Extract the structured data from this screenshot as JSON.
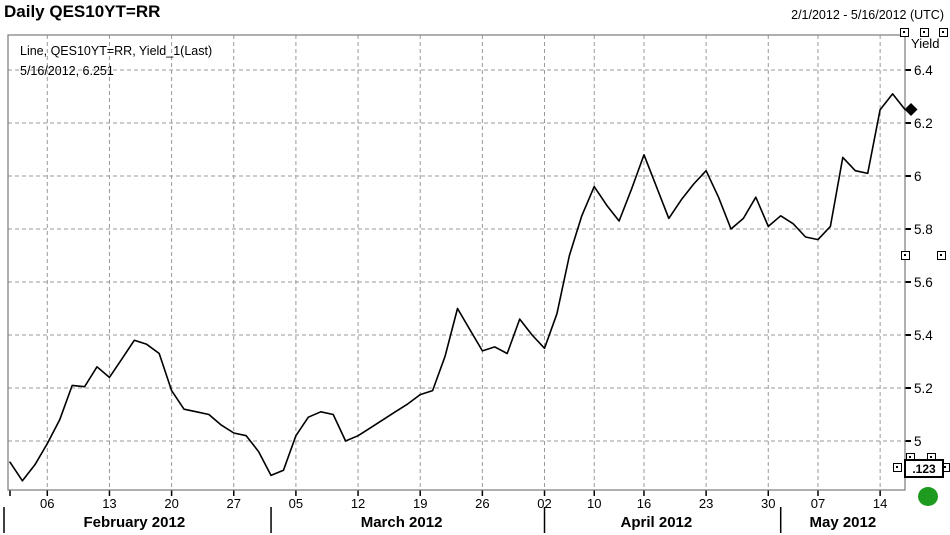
{
  "header": {
    "title": "Daily QES10YT=RR",
    "date_range": "2/1/2012 - 5/16/2012 (UTC)"
  },
  "legend": {
    "series": "Line, QES10YT=RR, Yield_1(Last)",
    "last_point": "5/16/2012, 6.251"
  },
  "y_axis": {
    "title": "Yield",
    "tick_labels": [
      "6.4",
      "6.2",
      "6",
      "5.8",
      "5.6",
      "5.4",
      "5.2",
      "5"
    ],
    "tick_values": [
      6.4,
      6.2,
      6.0,
      5.8,
      5.6,
      5.4,
      5.2,
      5.0
    ]
  },
  "toolbar": {
    "decimal_button": ".123"
  },
  "colors": {
    "line": "#000000",
    "grid": "#999999",
    "frame": "#7a7a7a",
    "axis_tick": "#000000",
    "status_dot": "#1e9b1e",
    "marker": "#000000"
  },
  "icons": [
    "selection-handle-icon",
    "last-price-diamond-icon",
    "status-dot-icon"
  ],
  "chart_data": {
    "type": "line",
    "title": "Daily QES10YT=RR",
    "ylabel": "Yield",
    "ylim": [
      4.81,
      6.53
    ],
    "grid": "dashed",
    "legend_position": "top-left-inside",
    "last_date": "5/16/2012",
    "last_value": 6.251,
    "dates": [
      "Feb 01",
      "Feb 02",
      "Feb 03",
      "Feb 06",
      "Feb 07",
      "Feb 08",
      "Feb 09",
      "Feb 10",
      "Feb 13",
      "Feb 14",
      "Feb 15",
      "Feb 16",
      "Feb 17",
      "Feb 20",
      "Feb 21",
      "Feb 22",
      "Feb 23",
      "Feb 24",
      "Feb 27",
      "Feb 28",
      "Feb 29",
      "Mar 01",
      "Mar 02",
      "Mar 05",
      "Mar 06",
      "Mar 07",
      "Mar 08",
      "Mar 09",
      "Mar 12",
      "Mar 13",
      "Mar 14",
      "Mar 15",
      "Mar 16",
      "Mar 19",
      "Mar 20",
      "Mar 21",
      "Mar 22",
      "Mar 23",
      "Mar 26",
      "Mar 27",
      "Mar 28",
      "Mar 29",
      "Mar 30",
      "Apr 02",
      "Apr 03",
      "Apr 04",
      "Apr 09",
      "Apr 10",
      "Apr 11",
      "Apr 12",
      "Apr 13",
      "Apr 16",
      "Apr 17",
      "Apr 18",
      "Apr 19",
      "Apr 20",
      "Apr 23",
      "Apr 24",
      "Apr 25",
      "Apr 26",
      "Apr 27",
      "Apr 30",
      "May 02",
      "May 03",
      "May 04",
      "May 07",
      "May 08",
      "May 09",
      "May 10",
      "May 11",
      "May 14",
      "May 15",
      "May 16"
    ],
    "values": [
      4.92,
      4.85,
      4.91,
      4.99,
      5.08,
      5.21,
      5.205,
      5.28,
      5.24,
      5.31,
      5.38,
      5.365,
      5.33,
      5.19,
      5.12,
      5.11,
      5.1,
      5.06,
      5.03,
      5.02,
      4.96,
      4.87,
      4.89,
      5.02,
      5.09,
      5.11,
      5.1,
      5.0,
      5.02,
      5.05,
      5.08,
      5.11,
      5.14,
      5.175,
      5.19,
      5.32,
      5.5,
      5.42,
      5.34,
      5.355,
      5.33,
      5.46,
      5.4,
      5.35,
      5.48,
      5.7,
      5.85,
      5.96,
      5.89,
      5.83,
      5.95,
      6.08,
      5.96,
      5.84,
      5.91,
      5.97,
      6.02,
      5.92,
      5.8,
      5.84,
      5.92,
      5.81,
      5.85,
      5.82,
      5.77,
      5.76,
      5.81,
      6.07,
      6.02,
      6.01,
      6.25,
      6.31,
      6.251
    ],
    "x_ticks": [
      {
        "index": 3,
        "label": "06"
      },
      {
        "index": 8,
        "label": "13"
      },
      {
        "index": 13,
        "label": "20"
      },
      {
        "index": 18,
        "label": "27"
      },
      {
        "index": 23,
        "label": "05"
      },
      {
        "index": 28,
        "label": "12"
      },
      {
        "index": 33,
        "label": "19"
      },
      {
        "index": 38,
        "label": "26"
      },
      {
        "index": 43,
        "label": "02"
      },
      {
        "index": 47,
        "label": "10"
      },
      {
        "index": 51,
        "label": "16"
      },
      {
        "index": 56,
        "label": "23"
      },
      {
        "index": 61,
        "label": "30"
      },
      {
        "index": 65,
        "label": "07"
      },
      {
        "index": 70,
        "label": "14"
      }
    ],
    "months": [
      {
        "label": "February 2012",
        "start": 0,
        "end": 20
      },
      {
        "label": "March 2012",
        "start": 21,
        "end": 42
      },
      {
        "label": "April 2012",
        "start": 43,
        "end": 61
      },
      {
        "label": "May 2012",
        "start": 62,
        "end": 72
      }
    ]
  }
}
